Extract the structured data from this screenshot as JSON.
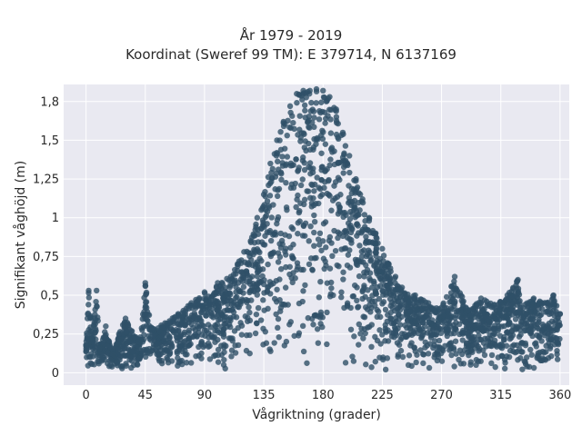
{
  "chart_data": {
    "type": "scatter",
    "title_lines": [
      "År 1979 - 2019",
      "Koordinat (Sweref 99 TM): E 379714, N 6137169"
    ],
    "xlabel": "Vågriktning (grader)",
    "ylabel": "Signifikant våghöjd (m)",
    "xlim": [
      -17,
      367
    ],
    "ylim": [
      -0.08,
      1.86
    ],
    "x_ticks": [
      0,
      45,
      90,
      135,
      180,
      225,
      270,
      315,
      360
    ],
    "x_tick_labels": [
      "0",
      "45",
      "90",
      "135",
      "180",
      "225",
      "270",
      "315",
      "360"
    ],
    "y_ticks": [
      0,
      0.25,
      0.5,
      0.75,
      1,
      1.25,
      1.5,
      1.75
    ],
    "y_tick_labels": [
      "0",
      "0,25",
      "0,5",
      "0,75",
      "1",
      "1,25",
      "1,5",
      "1,8"
    ],
    "grid": true,
    "marker_color": "#2f5068",
    "series": [
      {
        "points": [
          [
            0,
            0.18
          ],
          [
            5,
            0.22
          ],
          [
            10,
            0.15
          ],
          [
            15,
            0.3
          ],
          [
            20,
            0.12
          ],
          [
            25,
            0.25
          ],
          [
            30,
            0.35
          ],
          [
            40,
            0.2
          ],
          [
            45,
            0.42
          ],
          [
            50,
            0.28
          ],
          [
            60,
            0.32
          ],
          [
            70,
            0.38
          ],
          [
            80,
            0.45
          ],
          [
            90,
            0.52
          ],
          [
            95,
            0.48
          ],
          [
            100,
            0.58
          ],
          [
            110,
            0.62
          ],
          [
            115,
            0.7
          ],
          [
            120,
            0.78
          ],
          [
            125,
            0.85
          ],
          [
            130,
            1.0
          ],
          [
            135,
            1.15
          ],
          [
            140,
            1.35
          ],
          [
            145,
            1.5
          ],
          [
            150,
            1.62
          ],
          [
            155,
            1.72
          ],
          [
            160,
            1.8
          ],
          [
            165,
            1.82
          ],
          [
            170,
            1.82
          ],
          [
            175,
            1.83
          ],
          [
            180,
            1.82
          ],
          [
            185,
            1.78
          ],
          [
            190,
            1.7
          ],
          [
            195,
            1.55
          ],
          [
            200,
            1.4
          ],
          [
            205,
            1.25
          ],
          [
            210,
            1.12
          ],
          [
            215,
            1.0
          ],
          [
            220,
            0.9
          ],
          [
            225,
            0.8
          ],
          [
            230,
            0.7
          ],
          [
            235,
            0.62
          ],
          [
            240,
            0.55
          ],
          [
            250,
            0.5
          ],
          [
            260,
            0.45
          ],
          [
            270,
            0.42
          ],
          [
            280,
            0.45
          ],
          [
            290,
            0.4
          ],
          [
            300,
            0.48
          ],
          [
            310,
            0.44
          ],
          [
            320,
            0.5
          ],
          [
            330,
            0.42
          ],
          [
            340,
            0.48
          ],
          [
            350,
            0.45
          ],
          [
            355,
            0.5
          ],
          [
            360,
            0.38
          ],
          [
            2,
            0.53
          ],
          [
            8,
            0.53
          ],
          [
            45,
            0.58
          ],
          [
            280,
            0.62
          ],
          [
            328,
            0.6
          ]
        ]
      }
    ]
  }
}
